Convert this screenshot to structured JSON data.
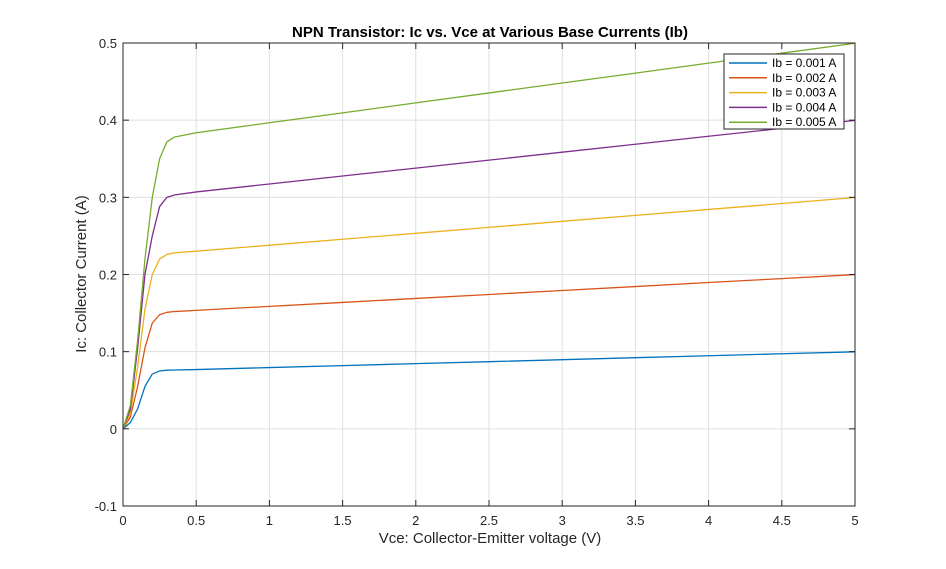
{
  "chart_data": {
    "type": "line",
    "title": "NPN Transistor: Ic vs. Vce at Various Base Currents (Ib)",
    "xlabel": "Vce: Collector-Emitter voltage (V)",
    "ylabel": "Ic: Collector Current (A)",
    "xlim": [
      0,
      5
    ],
    "ylim": [
      -0.1,
      0.5
    ],
    "xticks": [
      0,
      0.5,
      1,
      1.5,
      2,
      2.5,
      3,
      3.5,
      4,
      4.5,
      5
    ],
    "xtick_labels": [
      "0",
      "0.5",
      "1",
      "1.5",
      "2",
      "2.5",
      "3",
      "3.5",
      "4",
      "4.5",
      "5"
    ],
    "yticks": [
      -0.1,
      0,
      0.1,
      0.2,
      0.3,
      0.4,
      0.5
    ],
    "ytick_labels": [
      "-0.1",
      "0",
      "0.1",
      "0.2",
      "0.3",
      "0.4",
      "0.5"
    ],
    "grid": true,
    "legend_position": "top-right",
    "x": [
      0,
      0.05,
      0.1,
      0.15,
      0.2,
      0.25,
      0.3,
      0.35,
      0.5,
      1,
      1.5,
      2,
      2.5,
      3,
      3.5,
      4,
      4.5,
      5
    ],
    "series": [
      {
        "name": "Ib = 0.001 A",
        "color": "#0072BD",
        "values": [
          0,
          0.008,
          0.026,
          0.055,
          0.071,
          0.075,
          0.076,
          0.0762,
          0.0768,
          0.0794,
          0.0819,
          0.0845,
          0.087,
          0.0896,
          0.0922,
          0.0947,
          0.0973,
          0.0998
        ]
      },
      {
        "name": "Ib = 0.002 A",
        "color": "#D95319",
        "values": [
          0,
          0.015,
          0.055,
          0.105,
          0.137,
          0.148,
          0.151,
          0.152,
          0.1535,
          0.1587,
          0.1638,
          0.169,
          0.1741,
          0.1793,
          0.1844,
          0.1896,
          0.1947,
          0.1999
        ]
      },
      {
        "name": "Ib = 0.003 A",
        "color": "#EDB120",
        "values": [
          0,
          0.02,
          0.08,
          0.155,
          0.2,
          0.22,
          0.226,
          0.228,
          0.2302,
          0.238,
          0.2457,
          0.2534,
          0.2611,
          0.2689,
          0.2766,
          0.2843,
          0.292,
          0.2998
        ]
      },
      {
        "name": "Ib = 0.004 A",
        "color": "#7E2F8E",
        "values": [
          0,
          0.025,
          0.105,
          0.2,
          0.25,
          0.288,
          0.3,
          0.303,
          0.307,
          0.3173,
          0.3276,
          0.3379,
          0.3482,
          0.3585,
          0.3688,
          0.3791,
          0.3894,
          0.3997
        ]
      },
      {
        "name": "Ib = 0.005 A",
        "color": "#77AC30",
        "values": [
          0,
          0.03,
          0.115,
          0.22,
          0.3,
          0.35,
          0.372,
          0.378,
          0.3837,
          0.3966,
          0.4095,
          0.4224,
          0.4353,
          0.4482,
          0.461,
          0.4739,
          0.4868,
          0.4997
        ]
      }
    ]
  }
}
